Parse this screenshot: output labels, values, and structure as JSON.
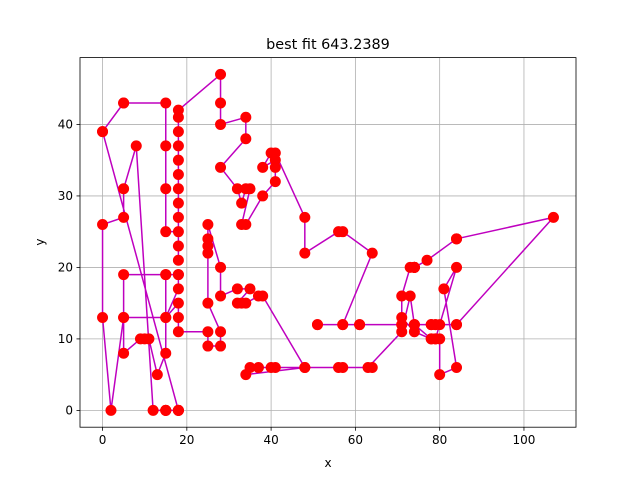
{
  "chart_data": {
    "type": "line",
    "title": "best fit 643.2389",
    "xlabel": "x",
    "ylabel": "y",
    "xlim": [
      -5.35,
      112.35
    ],
    "ylim": [
      -2.35,
      49.35
    ],
    "xticks": [
      "0",
      "20",
      "40",
      "60",
      "80",
      "100"
    ],
    "xtick_values": [
      0,
      20,
      40,
      60,
      80,
      100
    ],
    "yticks": [
      "0",
      "10",
      "20",
      "30",
      "40"
    ],
    "ytick_values": [
      0,
      10,
      20,
      30,
      40
    ],
    "grid": true,
    "line_color": "#bf00bf",
    "marker_color": "#ff0000",
    "series": [
      {
        "x": [
          0,
          5,
          5,
          15,
          15,
          15,
          15,
          18,
          18,
          18,
          18,
          18,
          18,
          18,
          18,
          18,
          18,
          18,
          18,
          28,
          28,
          28,
          34,
          34,
          28,
          32,
          33,
          34,
          35,
          33,
          34,
          38,
          41,
          41,
          41,
          38,
          40,
          41,
          48,
          48,
          56,
          57,
          64,
          57,
          51,
          51,
          57,
          61,
          61,
          71,
          71,
          74,
          74,
          78,
          79,
          78,
          79,
          78,
          80,
          84,
          84,
          107,
          84,
          84,
          77,
          74,
          74,
          74,
          74,
          74,
          73,
          71,
          71,
          74,
          78,
          79,
          80,
          80,
          84,
          81,
          84,
          79,
          78,
          74,
          73,
          71,
          63,
          57,
          64,
          56,
          48,
          41,
          40,
          37,
          35,
          34,
          48,
          38,
          37,
          34,
          33,
          32,
          35,
          32,
          28,
          28,
          25,
          25,
          25,
          25,
          25,
          28,
          28,
          25,
          25,
          18,
          18,
          18,
          15,
          18,
          18,
          18,
          15,
          5,
          5,
          15,
          15,
          15,
          13,
          11,
          10,
          9,
          5,
          5,
          2,
          0,
          0,
          5,
          5,
          8,
          12,
          15,
          18,
          18,
          18,
          15,
          15,
          15,
          18,
          0
        ],
        "y": [
          39,
          43,
          43,
          43,
          37,
          31,
          25,
          25,
          21,
          23,
          27,
          29,
          31,
          33,
          35,
          37,
          39,
          41,
          42,
          47,
          43,
          40,
          41,
          38,
          34,
          31,
          29,
          31,
          31,
          26,
          26,
          30,
          32,
          34,
          35,
          34,
          36,
          36,
          27,
          22,
          25,
          25,
          22,
          12,
          12,
          12,
          12,
          12,
          12,
          12,
          12,
          12,
          12,
          12,
          12,
          12,
          12,
          12,
          12,
          12,
          12,
          27,
          24,
          24,
          21,
          20,
          20,
          20,
          20,
          20,
          20,
          16,
          13,
          11,
          10,
          10,
          10,
          5,
          6,
          17,
          20,
          10,
          10,
          12,
          16,
          11,
          6,
          6,
          6,
          6,
          6,
          6,
          6,
          6,
          6,
          5,
          6,
          16,
          16,
          15,
          15,
          15,
          17,
          17,
          16,
          20,
          26,
          24,
          23,
          22,
          15,
          11,
          9,
          9,
          11,
          11,
          13,
          15,
          13,
          17,
          19,
          19,
          19,
          19,
          13,
          13,
          19,
          8,
          5,
          10,
          10,
          10,
          8,
          13,
          0,
          13,
          26,
          27,
          31,
          37,
          0,
          0,
          0,
          0,
          0,
          0,
          0,
          0,
          0,
          39
        ]
      }
    ]
  }
}
